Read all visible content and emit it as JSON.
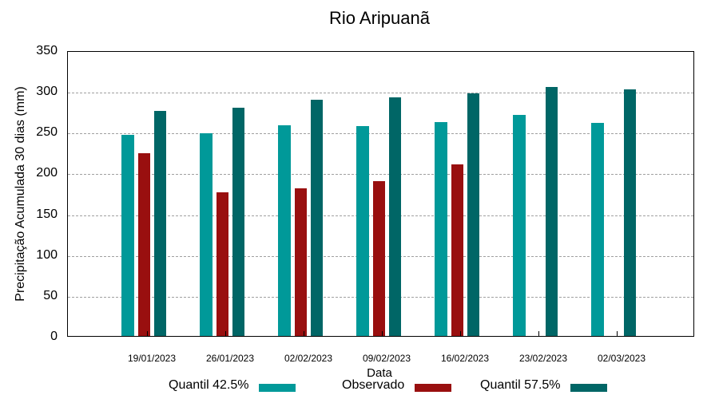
{
  "chart_data": {
    "type": "bar",
    "title": "Rio Aripuanã",
    "xlabel": "Data",
    "ylabel": "Precipitação Acumulada 30 dias (mm)",
    "ylim": [
      0,
      350
    ],
    "yticks": [
      0,
      50,
      100,
      150,
      200,
      250,
      300,
      350
    ],
    "grid": true,
    "legend_position": "bottom",
    "categories": [
      "19/01/2023",
      "26/01/2023",
      "02/02/2023",
      "09/02/2023",
      "16/02/2023",
      "23/02/2023",
      "02/03/2023"
    ],
    "series": [
      {
        "name": "Quantil 42.5%",
        "color": "#009999",
        "values": [
          246,
          248,
          258,
          257,
          262,
          271,
          261
        ]
      },
      {
        "name": "Observado",
        "color": "#990f0f",
        "values": [
          224,
          176,
          181,
          190,
          210,
          null,
          null
        ]
      },
      {
        "name": "Quantil 57.5%",
        "color": "#006666",
        "values": [
          276,
          280,
          289,
          292,
          297,
          305,
          302
        ]
      }
    ]
  },
  "labels": {
    "title": "Rio Aripuanã",
    "xlabel": "Data",
    "ylabel": "Precipitação Acumulada 30 dias (mm)",
    "legend": [
      "Quantil 42.5%",
      "Observado",
      "Quantil 57.5%"
    ]
  }
}
